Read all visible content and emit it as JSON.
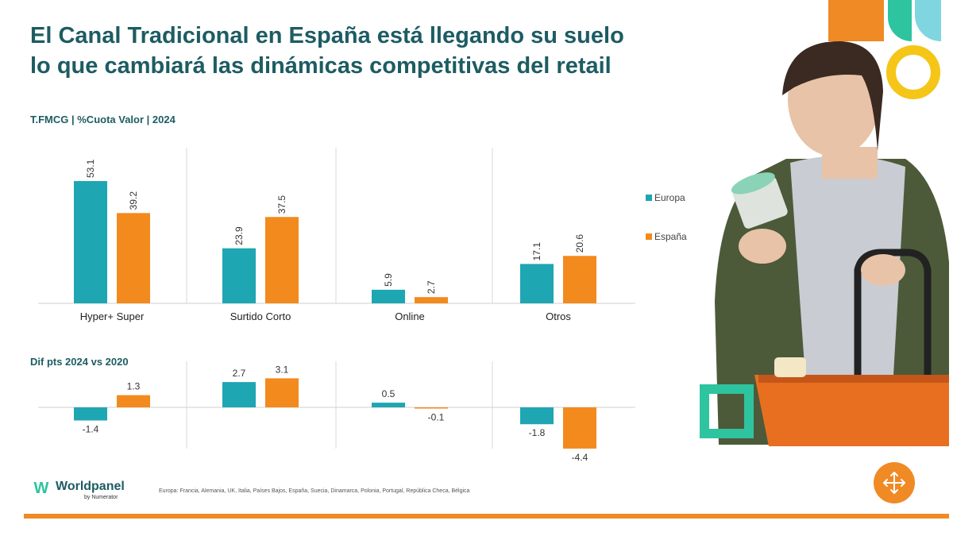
{
  "title": {
    "line1": "El Canal Tradicional en España está llegando su suelo",
    "line2": "lo que cambiará las dinámicas competitivas del retail"
  },
  "colors": {
    "title": "#1d5c63",
    "europa": "#1ea7b3",
    "espana": "#f28a1e",
    "accent_orange": "#f08a24",
    "accent_green": "#2ec4a0",
    "accent_yellow": "#f5c518"
  },
  "chart_data": [
    {
      "type": "bar",
      "title": "T.FMCG | %Cuota Valor | 2024",
      "categories": [
        "Hyper+ Super",
        "Surtido Corto",
        "Online",
        "Otros"
      ],
      "series": [
        {
          "name": "Europa",
          "values": [
            53.1,
            23.9,
            5.9,
            17.1
          ]
        },
        {
          "name": "España",
          "values": [
            39.2,
            37.5,
            2.7,
            20.6
          ]
        }
      ],
      "value_labels": {
        "Europa": [
          "53.1",
          "23.9",
          "5.9",
          "17.1"
        ],
        "España": [
          "39.2",
          "37.5",
          "2.7",
          "20.6"
        ]
      },
      "ylim": [
        0,
        55
      ],
      "legend": "right",
      "grid": false
    },
    {
      "type": "bar",
      "title": "Dif pts 2024 vs 2020",
      "categories": [
        "Hyper+ Super",
        "Surtido Corto",
        "Online",
        "Otros"
      ],
      "series": [
        {
          "name": "Europa",
          "values": [
            -1.4,
            2.7,
            0.5,
            -1.8
          ]
        },
        {
          "name": "España",
          "values": [
            1.3,
            3.1,
            -0.1,
            -4.4
          ]
        }
      ],
      "value_labels": {
        "Europa": [
          "-1.4",
          "2.7",
          "0.5",
          "-1.8"
        ],
        "España": [
          "1.3",
          "3.1",
          "-0.1",
          "-4.4"
        ]
      },
      "ylim": [
        -4.5,
        3.5
      ],
      "grid": false
    }
  ],
  "legend": {
    "europa": "Europa",
    "espana": "España"
  },
  "footnote": "Europa: Francia, Alemania, UK, Italia, Países Bajos, España, Suecia, Dinamarca, Polonia, Portugal, República Checa, Bélgica",
  "brand": {
    "name": "Worldpanel",
    "sub": "by Numerator",
    "mark": "W"
  },
  "icons": {
    "move": "move-arrows-icon"
  }
}
